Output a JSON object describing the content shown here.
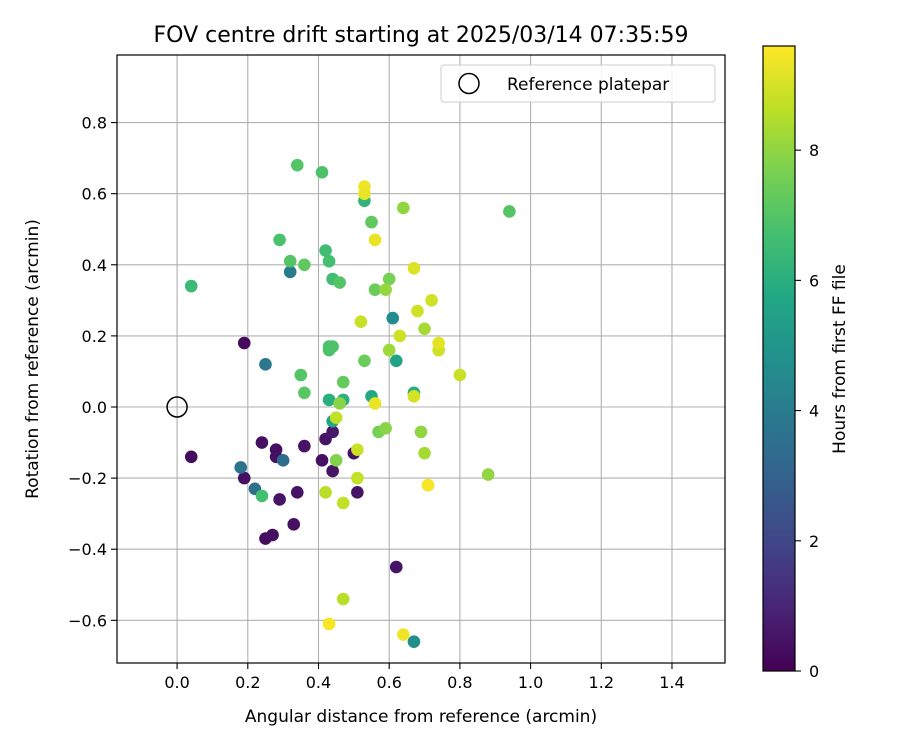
{
  "chart_data": {
    "type": "scatter",
    "title": "FOV centre drift starting at 2025/03/14 07:35:59",
    "xlabel": "Angular distance from reference (arcmin)",
    "ylabel": "Rotation from reference (arcmin)",
    "xlim": [
      -0.17,
      1.55
    ],
    "ylim": [
      -0.72,
      0.99
    ],
    "xticks": [
      0.0,
      0.2,
      0.4,
      0.6,
      0.8,
      1.0,
      1.2,
      1.4
    ],
    "xtick_labels": [
      "0.0",
      "0.2",
      "0.4",
      "0.6",
      "0.8",
      "1.0",
      "1.2",
      "1.4"
    ],
    "yticks": [
      -0.6,
      -0.4,
      -0.2,
      0.0,
      0.2,
      0.4,
      0.6,
      0.8
    ],
    "ytick_labels": [
      "−0.6",
      "−0.4",
      "−0.2",
      "0.0",
      "0.2",
      "0.4",
      "0.6",
      "0.8"
    ],
    "grid": true,
    "legend": {
      "placement": "top-right",
      "entries": [
        "Reference platepar"
      ]
    },
    "reference_point": {
      "x": 0.0,
      "y": 0.0,
      "marker": "open-circle"
    },
    "colorbar": {
      "label": "Hours from first FF file",
      "colormap": "viridis",
      "range": [
        0,
        9.6
      ],
      "ticks": [
        0,
        2,
        4,
        6,
        8
      ],
      "tick_labels": [
        "0",
        "2",
        "4",
        "6",
        "8"
      ]
    },
    "series": [
      {
        "points": [
          [
            0.04,
            -0.14,
            0.3
          ],
          [
            0.19,
            0.18,
            0.3
          ],
          [
            0.19,
            -0.2,
            0.4
          ],
          [
            0.24,
            -0.1,
            0.4
          ],
          [
            0.25,
            -0.37,
            0.3
          ],
          [
            0.27,
            -0.36,
            0.4
          ],
          [
            0.28,
            -0.12,
            0.4
          ],
          [
            0.28,
            -0.14,
            0.4
          ],
          [
            0.29,
            -0.26,
            0.5
          ],
          [
            0.33,
            -0.33,
            0.4
          ],
          [
            0.34,
            -0.24,
            0.5
          ],
          [
            0.36,
            -0.11,
            0.5
          ],
          [
            0.41,
            -0.15,
            0.4
          ],
          [
            0.42,
            -0.09,
            0.5
          ],
          [
            0.44,
            -0.18,
            0.5
          ],
          [
            0.44,
            -0.07,
            0.6
          ],
          [
            0.5,
            -0.13,
            0.4
          ],
          [
            0.51,
            -0.24,
            0.5
          ],
          [
            0.62,
            -0.45,
            0.5
          ],
          [
            0.18,
            -0.17,
            3.6
          ],
          [
            0.22,
            -0.23,
            3.5
          ],
          [
            0.25,
            0.12,
            3.8
          ],
          [
            0.3,
            -0.15,
            3.4
          ],
          [
            0.32,
            0.38,
            4.0
          ],
          [
            0.61,
            0.25,
            4.6
          ],
          [
            0.67,
            -0.66,
            4.7
          ],
          [
            0.62,
            0.13,
            5.6
          ],
          [
            0.55,
            0.03,
            5.8
          ],
          [
            0.43,
            0.02,
            6.0
          ],
          [
            0.44,
            -0.04,
            5.7
          ],
          [
            0.47,
            0.02,
            6.1
          ],
          [
            0.53,
            0.58,
            6.2
          ],
          [
            0.67,
            0.04,
            5.9
          ],
          [
            0.04,
            0.34,
            6.5
          ],
          [
            0.24,
            -0.25,
            6.7
          ],
          [
            0.29,
            0.47,
            6.8
          ],
          [
            0.32,
            0.41,
            7.0
          ],
          [
            0.34,
            0.68,
            7.0
          ],
          [
            0.35,
            0.09,
            7.0
          ],
          [
            0.36,
            0.4,
            7.2
          ],
          [
            0.36,
            0.04,
            7.1
          ],
          [
            0.41,
            0.66,
            6.9
          ],
          [
            0.42,
            0.44,
            6.6
          ],
          [
            0.43,
            0.41,
            6.7
          ],
          [
            0.43,
            0.17,
            6.8
          ],
          [
            0.43,
            0.16,
            6.9
          ],
          [
            0.44,
            0.36,
            6.6
          ],
          [
            0.44,
            0.17,
            6.9
          ],
          [
            0.46,
            0.35,
            7.0
          ],
          [
            0.47,
            0.07,
            7.3
          ],
          [
            0.53,
            0.13,
            7.4
          ],
          [
            0.55,
            0.52,
            7.2
          ],
          [
            0.56,
            0.33,
            7.4
          ],
          [
            0.6,
            0.36,
            7.6
          ],
          [
            0.57,
            -0.07,
            7.6
          ],
          [
            0.94,
            0.55,
            7.0
          ],
          [
            0.45,
            -0.15,
            7.8
          ],
          [
            0.46,
            0.01,
            7.9
          ],
          [
            0.59,
            0.33,
            8.1
          ],
          [
            0.59,
            -0.06,
            7.9
          ],
          [
            0.6,
            0.16,
            8.2
          ],
          [
            0.64,
            0.56,
            8.0
          ],
          [
            0.69,
            -0.07,
            8.0
          ],
          [
            0.7,
            -0.13,
            8.3
          ],
          [
            0.7,
            0.22,
            8.3
          ],
          [
            0.88,
            -0.19,
            8.0
          ],
          [
            0.42,
            -0.24,
            8.6
          ],
          [
            0.47,
            -0.54,
            8.6
          ],
          [
            0.47,
            -0.27,
            8.7
          ],
          [
            0.45,
            -0.03,
            8.7
          ],
          [
            0.51,
            -0.12,
            8.8
          ],
          [
            0.51,
            -0.2,
            8.7
          ],
          [
            0.52,
            0.24,
            8.8
          ],
          [
            0.63,
            0.2,
            8.9
          ],
          [
            0.68,
            0.27,
            8.9
          ],
          [
            0.72,
            0.3,
            8.9
          ],
          [
            0.74,
            0.16,
            8.9
          ],
          [
            0.8,
            0.09,
            8.8
          ],
          [
            0.71,
            -0.22,
            8.9
          ],
          [
            0.67,
            0.03,
            9.0
          ],
          [
            0.43,
            -0.61,
            9.5
          ],
          [
            0.53,
            0.62,
            9.4
          ],
          [
            0.53,
            0.6,
            9.3
          ],
          [
            0.56,
            0.47,
            9.3
          ],
          [
            0.56,
            0.01,
            9.3
          ],
          [
            0.64,
            -0.64,
            9.4
          ],
          [
            0.67,
            0.39,
            9.1
          ],
          [
            0.71,
            -0.22,
            9.5
          ],
          [
            0.74,
            0.18,
            9.2
          ]
        ]
      }
    ]
  }
}
